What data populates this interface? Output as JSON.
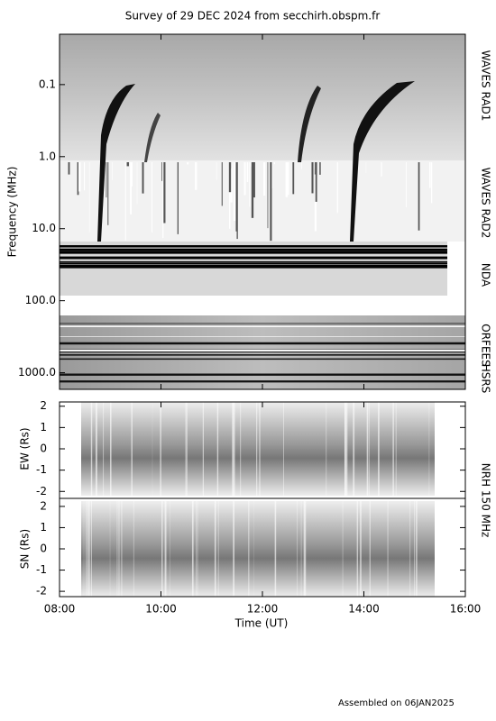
{
  "title": "Survey of 29 DEC 2024 from secchirh.obspm.fr",
  "spectrum": {
    "y_label": "Frequency (MHz)",
    "log": true,
    "ylim": [
      0.02,
      1700
    ],
    "yticks": [
      {
        "value": 0.1,
        "label": "0.1"
      },
      {
        "value": 1,
        "label": "1.0"
      },
      {
        "value": 10,
        "label": "10.0"
      },
      {
        "value": 100,
        "label": "100.0"
      },
      {
        "value": 1000,
        "label": "1000.0"
      }
    ],
    "instruments": [
      "WAVES RAD1",
      "WAVES RAD2",
      "NDA",
      "ORFEES",
      "HSRS"
    ]
  },
  "ew": {
    "y_label": "EW (Rs)",
    "ylim": [
      -2.2,
      2.2
    ],
    "yticks": [
      2,
      1,
      0,
      -1,
      -2
    ]
  },
  "sn": {
    "y_label": "SN (Rs)",
    "ylim": [
      -2.25,
      2.25
    ],
    "yticks": [
      2,
      1,
      0,
      -1,
      -2
    ]
  },
  "nrh_label": "NRH 150 MHz",
  "x": {
    "label": "Time (UT)",
    "xlim": [
      8,
      16
    ],
    "xticks": [
      {
        "value": 8,
        "label": "08:00"
      },
      {
        "value": 10,
        "label": "10:00"
      },
      {
        "value": 12,
        "label": "12:00"
      },
      {
        "value": 14,
        "label": "14:00"
      },
      {
        "value": 16,
        "label": "16:00"
      }
    ]
  },
  "footer": "Assembled on 06JAN2025"
}
